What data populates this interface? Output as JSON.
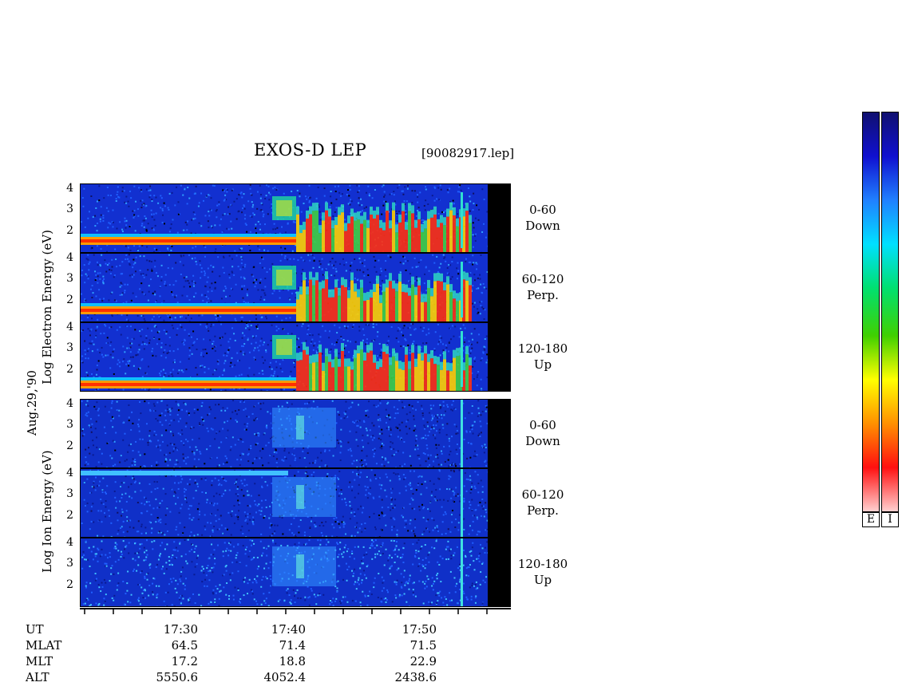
{
  "title": "EXOS-D LEP",
  "file_label": "[90082917.lep]",
  "date_label": "Aug.29,'90",
  "electron_axis_label": "Log   Electron   Energy (eV)",
  "ion_axis_label": "Log   Ion   Energy (eV)",
  "panels": [
    {
      "species": "electron",
      "angle": "0-60",
      "direction": "Down"
    },
    {
      "species": "electron",
      "angle": "60-120",
      "direction": "Perp."
    },
    {
      "species": "electron",
      "angle": "120-180",
      "direction": "Up"
    },
    {
      "species": "ion",
      "angle": "0-60",
      "direction": "Down"
    },
    {
      "species": "ion",
      "angle": "60-120",
      "direction": "Perp."
    },
    {
      "species": "ion",
      "angle": "120-180",
      "direction": "Up"
    }
  ],
  "y_ticks": [
    "4",
    "3",
    "2"
  ],
  "footer": {
    "row_labels": [
      "UT",
      "MLAT",
      "MLT",
      "ALT"
    ],
    "columns": [
      {
        "UT": "17:30",
        "MLAT": "64.5",
        "MLT": "17.2",
        "ALT": "5550.6"
      },
      {
        "UT": "17:40",
        "MLAT": "71.4",
        "MLT": "18.8",
        "ALT": "4052.4"
      },
      {
        "UT": "17:50",
        "MLAT": "71.5",
        "MLT": "22.9",
        "ALT": "2438.6"
      }
    ]
  },
  "colorbar": {
    "labels": [
      "E",
      "I"
    ],
    "colors": [
      "#101070",
      "#1010d0",
      "#2080ff",
      "#00e0ff",
      "#00e070",
      "#40d000",
      "#ffff00",
      "#ff9000",
      "#ff1010",
      "#ffd0d0"
    ]
  },
  "chart_data": {
    "type": "heatmap",
    "title": "EXOS-D LEP",
    "x_ticks": [
      "17:30",
      "17:40",
      "17:50"
    ],
    "y_ticks": [
      2,
      3,
      4
    ],
    "ylabel_electron": "Log   Electron   Energy (eV)",
    "ylabel_ion": "Log   Ion   Energy (eV)",
    "panels": [
      "0-60 Down",
      "60-120 Perp.",
      "120-180 Up",
      "0-60 Down",
      "60-120 Perp.",
      "120-180 Up"
    ]
  }
}
